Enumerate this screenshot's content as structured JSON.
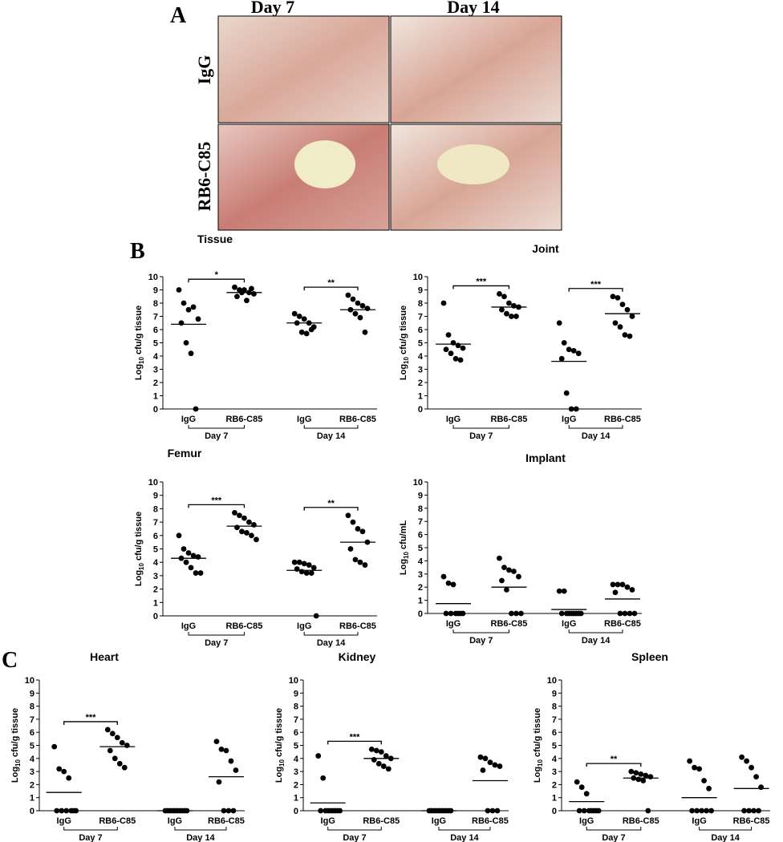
{
  "panel_a": {
    "label": "A",
    "columns": [
      "Day 7",
      "Day 14"
    ],
    "rows": [
      "IgG",
      "RB6-C85"
    ]
  },
  "panel_b_label": "B",
  "panel_c_label": "C",
  "chart_data": [
    {
      "type": "strip",
      "title": "Tissue",
      "y_label": {
        "prefix": "Log",
        "sub": "10",
        "suffix": " cfu/g tissue"
      },
      "categories": [
        "IgG",
        "RB6-C85",
        "IgG",
        "RB6-C85"
      ],
      "groups": [
        {
          "label": "Day 7",
          "significance": "*"
        },
        {
          "label": "Day 14",
          "significance": "**"
        }
      ],
      "points": [
        [
          9.0,
          8.0,
          7.5,
          7.7,
          6.8,
          6.5,
          5.0,
          4.2,
          0
        ],
        [
          9.2,
          9.0,
          9.0,
          8.8,
          8.7,
          8.5,
          8.8,
          8.2,
          9.1
        ],
        [
          7.2,
          7.0,
          6.8,
          6.5,
          6.2,
          6.5,
          5.8,
          5.7,
          6.0
        ],
        [
          8.6,
          8.3,
          8.0,
          7.8,
          7.6,
          7.5,
          7.2,
          6.9,
          5.8
        ]
      ],
      "means": [
        6.4,
        8.8,
        6.5,
        7.5
      ],
      "color": "#000000",
      "ylim": [
        0,
        10
      ],
      "yticks": [
        0,
        1,
        2,
        3,
        4,
        5,
        6,
        7,
        8,
        9,
        10
      ]
    },
    {
      "type": "strip",
      "title": "Joint",
      "y_label": {
        "prefix": "Log",
        "sub": "10",
        "suffix": " cfu/g tissue"
      },
      "categories": [
        "IgG",
        "RB6-C85",
        "IgG",
        "RB6-C85"
      ],
      "groups": [
        {
          "label": "Day 7",
          "significance": "***"
        },
        {
          "label": "Day 14",
          "significance": "***"
        }
      ],
      "points": [
        [
          8.0,
          5.6,
          5.0,
          4.8,
          4.6,
          4.5,
          4.2,
          3.8,
          3.7
        ],
        [
          8.7,
          8.5,
          8.0,
          7.8,
          7.7,
          7.5,
          7.2,
          7.0,
          7.0
        ],
        [
          6.5,
          5.0,
          4.5,
          4.4,
          4.2,
          3.8,
          1.2,
          0,
          0
        ],
        [
          8.5,
          8.4,
          7.9,
          7.5,
          7.0,
          6.5,
          6.2,
          5.6,
          5.5
        ]
      ],
      "means": [
        4.9,
        7.7,
        3.6,
        7.2
      ],
      "color": "#000000",
      "ylim": [
        0,
        10
      ],
      "yticks": [
        0,
        1,
        2,
        3,
        4,
        5,
        6,
        7,
        8,
        9,
        10
      ]
    },
    {
      "type": "strip",
      "title": "Femur",
      "y_label": {
        "prefix": "Log",
        "sub": "10",
        "suffix": " cfu/g tissue"
      },
      "categories": [
        "IgG",
        "RB6-C85",
        "IgG",
        "RB6-C85"
      ],
      "groups": [
        {
          "label": "Day 7",
          "significance": "***"
        },
        {
          "label": "Day 14",
          "significance": "**"
        }
      ],
      "points": [
        [
          6.0,
          5.0,
          4.7,
          4.5,
          4.4,
          4.3,
          4.0,
          3.6,
          3.2,
          3.2
        ],
        [
          7.7,
          7.5,
          7.3,
          7.0,
          6.8,
          6.6,
          6.3,
          6.2,
          6.0,
          5.7
        ],
        [
          4.0,
          4.0,
          3.9,
          3.8,
          3.6,
          3.5,
          3.3,
          3.2,
          3.2,
          0
        ],
        [
          7.5,
          7.0,
          6.5,
          6.3,
          5.5,
          5.0,
          4.2,
          4.0,
          3.8
        ]
      ],
      "means": [
        4.3,
        6.7,
        3.4,
        5.5
      ],
      "color": "#000000",
      "ylim": [
        0,
        10
      ],
      "yticks": [
        0,
        1,
        2,
        3,
        4,
        5,
        6,
        7,
        8,
        9,
        10
      ]
    },
    {
      "type": "strip",
      "title": "Implant",
      "y_label": {
        "prefix": "Log",
        "sub": "10",
        "suffix": " cfu/mL"
      },
      "categories": [
        "IgG",
        "RB6-C85",
        "IgG",
        "RB6-C85"
      ],
      "groups": [
        {
          "label": "Day 7",
          "significance": null
        },
        {
          "label": "Day 14",
          "significance": null
        }
      ],
      "points": [
        [
          2.8,
          2.3,
          2.2,
          0,
          0,
          0,
          0,
          0,
          0
        ],
        [
          4.2,
          3.5,
          3.3,
          3.2,
          2.8,
          2.5,
          1.8,
          0,
          0,
          0
        ],
        [
          1.7,
          1.7,
          0,
          0,
          0,
          0,
          0,
          0,
          0,
          0
        ],
        [
          2.2,
          2.2,
          2.2,
          2.0,
          1.8,
          1.6,
          0,
          0,
          0,
          0
        ]
      ],
      "means": [
        0.75,
        2.0,
        0.3,
        1.1
      ],
      "color": "#000000",
      "ylim": [
        0,
        10
      ],
      "yticks": [
        0,
        1,
        2,
        3,
        4,
        5,
        6,
        7,
        8,
        9,
        10
      ]
    },
    {
      "type": "strip",
      "title": "Heart",
      "y_label": {
        "prefix": "Log",
        "sub": "10",
        "suffix": " cfu/g tissue"
      },
      "categories": [
        "IgG",
        "RB6-C85",
        "IgG",
        "RB6-C85"
      ],
      "groups": [
        {
          "label": "Day 7",
          "significance": "***"
        },
        {
          "label": "Day 14",
          "significance": null
        }
      ],
      "points": [
        [
          4.9,
          3.2,
          3.0,
          2.5,
          0,
          0,
          0,
          0,
          0,
          0
        ],
        [
          6.2,
          5.9,
          5.6,
          5.2,
          5.0,
          4.6,
          4.0,
          3.6,
          3.3
        ],
        [
          0,
          0,
          0,
          0,
          0,
          0,
          0,
          0,
          0,
          0
        ],
        [
          5.3,
          4.7,
          4.6,
          3.8,
          3.1,
          2.2,
          0,
          0,
          0
        ]
      ],
      "means": [
        1.4,
        4.9,
        0,
        2.6
      ],
      "color": "#000000",
      "ylim": [
        0,
        10
      ],
      "yticks": [
        0,
        1,
        2,
        3,
        4,
        5,
        6,
        7,
        8,
        9,
        10
      ]
    },
    {
      "type": "strip",
      "title": "Kidney",
      "y_label": {
        "prefix": "Log",
        "sub": "10",
        "suffix": " cfu/g tissue"
      },
      "categories": [
        "IgG",
        "RB6-C85",
        "IgG",
        "RB6-C85"
      ],
      "groups": [
        {
          "label": "Day 7",
          "significance": "***"
        },
        {
          "label": "Day 14",
          "significance": null
        }
      ],
      "points": [
        [
          4.2,
          2.5,
          0,
          0,
          0,
          0,
          0,
          0,
          0,
          0
        ],
        [
          4.7,
          4.6,
          4.5,
          4.2,
          4.0,
          3.9,
          3.6,
          3.4,
          3.2
        ],
        [
          0,
          0,
          0,
          0,
          0,
          0,
          0,
          0,
          0,
          0
        ],
        [
          4.1,
          4.0,
          3.7,
          3.5,
          3.4,
          3.1,
          0,
          0,
          0
        ]
      ],
      "means": [
        0.6,
        4.0,
        0,
        2.3
      ],
      "color": "#000000",
      "ylim": [
        0,
        10
      ],
      "yticks": [
        0,
        1,
        2,
        3,
        4,
        5,
        6,
        7,
        8,
        9,
        10
      ]
    },
    {
      "type": "strip",
      "title": "Spleen",
      "y_label": {
        "prefix": "Log",
        "sub": "10",
        "suffix": " cfu/g tissue"
      },
      "categories": [
        "IgG",
        "RB6-C85",
        "IgG",
        "RB6-C85"
      ],
      "groups": [
        {
          "label": "Day 7",
          "significance": "**"
        },
        {
          "label": "Day 14",
          "significance": null
        }
      ],
      "points": [
        [
          2.2,
          1.8,
          1.3,
          0,
          0,
          0,
          0,
          0,
          0,
          0
        ],
        [
          3.0,
          2.9,
          2.8,
          2.7,
          2.6,
          2.5,
          2.4,
          2.3,
          0
        ],
        [
          3.8,
          3.3,
          3.2,
          2.3,
          1.7,
          0,
          0,
          0,
          0,
          0
        ],
        [
          4.1,
          3.8,
          3.3,
          2.6,
          1.8,
          0,
          0,
          0,
          0
        ]
      ],
      "means": [
        0.7,
        2.5,
        1.0,
        1.7
      ],
      "color": "#000000",
      "ylim": [
        0,
        10
      ],
      "yticks": [
        0,
        1,
        2,
        3,
        4,
        5,
        6,
        7,
        8,
        9,
        10
      ]
    }
  ]
}
